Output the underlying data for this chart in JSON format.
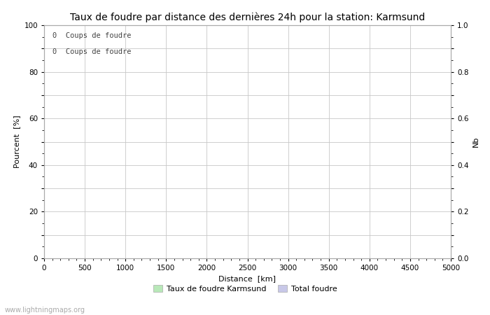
{
  "title": "Taux de foudre par distance des dernières 24h pour la station: Karmsund",
  "xlabel": "Distance  [km]",
  "ylabel_left": "Pourcent  [%]",
  "ylabel_right": "Nb",
  "annotation_lines": [
    "0  Coups de foudre",
    "0  Coups de foudre"
  ],
  "xlim": [
    0,
    5000
  ],
  "ylim_left": [
    0,
    100
  ],
  "ylim_right": [
    0,
    1.0
  ],
  "xticks": [
    0,
    500,
    1000,
    1500,
    2000,
    2500,
    3000,
    3500,
    4000,
    4500,
    5000
  ],
  "yticks_left": [
    0,
    10,
    20,
    30,
    40,
    50,
    60,
    70,
    80,
    90,
    100
  ],
  "yticks_right": [
    0.0,
    0.1,
    0.2,
    0.3,
    0.4,
    0.5,
    0.6,
    0.7,
    0.8,
    0.9,
    1.0
  ],
  "ytick_labels_left": [
    "0",
    "",
    "20",
    "",
    "40",
    "",
    "60",
    "",
    "80",
    "",
    "100"
  ],
  "ytick_labels_right": [
    "0.0",
    "",
    "0.2",
    "",
    "0.4",
    "",
    "0.6",
    "",
    "0.8",
    "",
    "1.0"
  ],
  "grid_color": "#c8c8c8",
  "background_color": "#ffffff",
  "legend_items": [
    {
      "label": "Taux de foudre Karmsund",
      "color": "#b8e8b8"
    },
    {
      "label": "Total foudre",
      "color": "#c8c8e8"
    }
  ],
  "watermark": "www.lightningmaps.org",
  "title_fontsize": 10,
  "axis_label_fontsize": 8,
  "tick_fontsize": 7.5,
  "legend_fontsize": 8,
  "annotation_fontsize": 7.5,
  "watermark_fontsize": 7
}
